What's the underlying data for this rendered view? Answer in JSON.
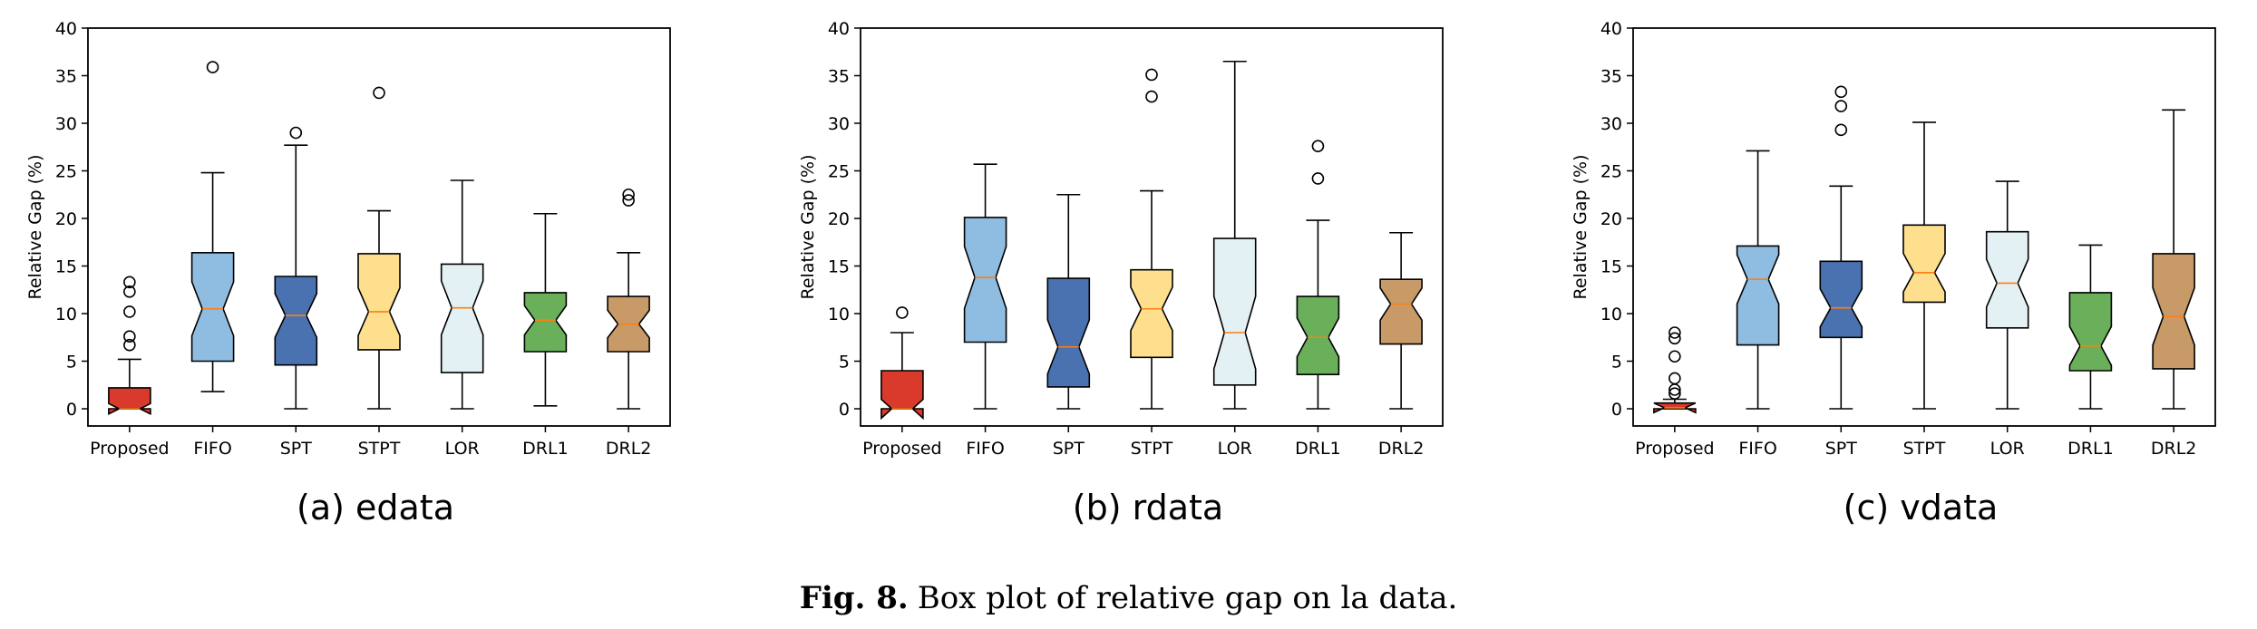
{
  "chart_data": [
    {
      "type": "box",
      "caption": "(a) edata",
      "ylabel": "Relative Gap (%)",
      "ylim": [
        0,
        40
      ],
      "yticks": [
        0,
        5,
        10,
        15,
        20,
        25,
        30,
        35,
        40
      ],
      "categories": [
        "Proposed",
        "FIFO",
        "SPT",
        "STPT",
        "LOR",
        "DRL1",
        "DRL2"
      ],
      "colors": [
        "#d93a2b",
        "#8fbde2",
        "#4a72b0",
        "#fddf8e",
        "#e4f1f4",
        "#6ab05a",
        "#c89a68"
      ],
      "boxes": [
        {
          "min": 0,
          "q1": 0,
          "median": 0,
          "q3": 2.2,
          "max": 5.2,
          "outliers": [
            6.7,
            7.6,
            10.2,
            12.3,
            13.3
          ]
        },
        {
          "min": 1.8,
          "q1": 5.0,
          "median": 10.5,
          "q3": 16.4,
          "max": 24.8,
          "outliers": [
            35.9
          ]
        },
        {
          "min": 0,
          "q1": 4.6,
          "median": 9.8,
          "q3": 13.9,
          "max": 27.7,
          "outliers": [
            29.0
          ]
        },
        {
          "min": 0,
          "q1": 6.2,
          "median": 10.2,
          "q3": 16.3,
          "max": 20.8,
          "outliers": [
            33.2
          ]
        },
        {
          "min": 0,
          "q1": 3.8,
          "median": 10.6,
          "q3": 15.2,
          "max": 24.0,
          "outliers": []
        },
        {
          "min": 0.3,
          "q1": 6.0,
          "median": 9.3,
          "q3": 12.2,
          "max": 20.5,
          "outliers": []
        },
        {
          "min": 0,
          "q1": 6.0,
          "median": 8.9,
          "q3": 11.8,
          "max": 16.4,
          "outliers": [
            21.9,
            22.5
          ]
        }
      ]
    },
    {
      "type": "box",
      "caption": "(b) rdata",
      "ylabel": "Relative Gap (%)",
      "ylim": [
        0,
        40
      ],
      "yticks": [
        0,
        5,
        10,
        15,
        20,
        25,
        30,
        35,
        40
      ],
      "categories": [
        "Proposed",
        "FIFO",
        "SPT",
        "STPT",
        "LOR",
        "DRL1",
        "DRL2"
      ],
      "colors": [
        "#d93a2b",
        "#8fbde2",
        "#4a72b0",
        "#fddf8e",
        "#e4f1f4",
        "#6ab05a",
        "#c89a68"
      ],
      "boxes": [
        {
          "min": 0,
          "q1": 0,
          "median": 0,
          "q3": 4.0,
          "max": 8.0,
          "outliers": [
            10.1
          ]
        },
        {
          "min": 0,
          "q1": 7.0,
          "median": 13.8,
          "q3": 20.1,
          "max": 25.7,
          "outliers": []
        },
        {
          "min": 0,
          "q1": 2.3,
          "median": 6.5,
          "q3": 13.7,
          "max": 22.5,
          "outliers": []
        },
        {
          "min": 0,
          "q1": 5.4,
          "median": 10.5,
          "q3": 14.6,
          "max": 22.9,
          "outliers": [
            32.8,
            35.1
          ]
        },
        {
          "min": 0,
          "q1": 2.5,
          "median": 8.0,
          "q3": 17.9,
          "max": 36.5,
          "outliers": []
        },
        {
          "min": 0,
          "q1": 3.6,
          "median": 7.5,
          "q3": 11.8,
          "max": 19.8,
          "outliers": [
            24.2,
            27.6
          ]
        },
        {
          "min": 0,
          "q1": 6.8,
          "median": 11.0,
          "q3": 13.6,
          "max": 18.5,
          "outliers": []
        }
      ]
    },
    {
      "type": "box",
      "caption": "(c) vdata",
      "ylabel": "Relative Gap (%)",
      "ylim": [
        0,
        40
      ],
      "yticks": [
        0,
        5,
        10,
        15,
        20,
        25,
        30,
        35,
        40
      ],
      "categories": [
        "Proposed",
        "FIFO",
        "SPT",
        "STPT",
        "LOR",
        "DRL1",
        "DRL2"
      ],
      "colors": [
        "#d93a2b",
        "#8fbde2",
        "#4a72b0",
        "#fddf8e",
        "#e4f1f4",
        "#6ab05a",
        "#c89a68"
      ],
      "boxes": [
        {
          "min": 0,
          "q1": 0,
          "median": 0.1,
          "q3": 0.6,
          "max": 1.0,
          "outliers": [
            1.6,
            2.0,
            3.2,
            5.5,
            7.4,
            8.0
          ]
        },
        {
          "min": 0,
          "q1": 6.7,
          "median": 13.6,
          "q3": 17.1,
          "max": 27.1,
          "outliers": []
        },
        {
          "min": 0,
          "q1": 7.5,
          "median": 10.6,
          "q3": 15.5,
          "max": 23.4,
          "outliers": [
            29.3,
            31.8,
            33.3
          ]
        },
        {
          "min": 0,
          "q1": 11.2,
          "median": 14.3,
          "q3": 19.3,
          "max": 30.1,
          "outliers": []
        },
        {
          "min": 0,
          "q1": 8.5,
          "median": 13.2,
          "q3": 18.6,
          "max": 23.9,
          "outliers": []
        },
        {
          "min": 0,
          "q1": 4.0,
          "median": 6.6,
          "q3": 12.2,
          "max": 17.2,
          "outliers": []
        },
        {
          "min": 0,
          "q1": 4.2,
          "median": 9.7,
          "q3": 16.3,
          "max": 31.4,
          "outliers": []
        }
      ]
    }
  ],
  "figure_caption": {
    "label": "Fig. 8.",
    "text": "Box plot of relative gap on la data."
  },
  "style": {
    "median_color": "#ff7f0e",
    "edge_color": "#000000"
  }
}
